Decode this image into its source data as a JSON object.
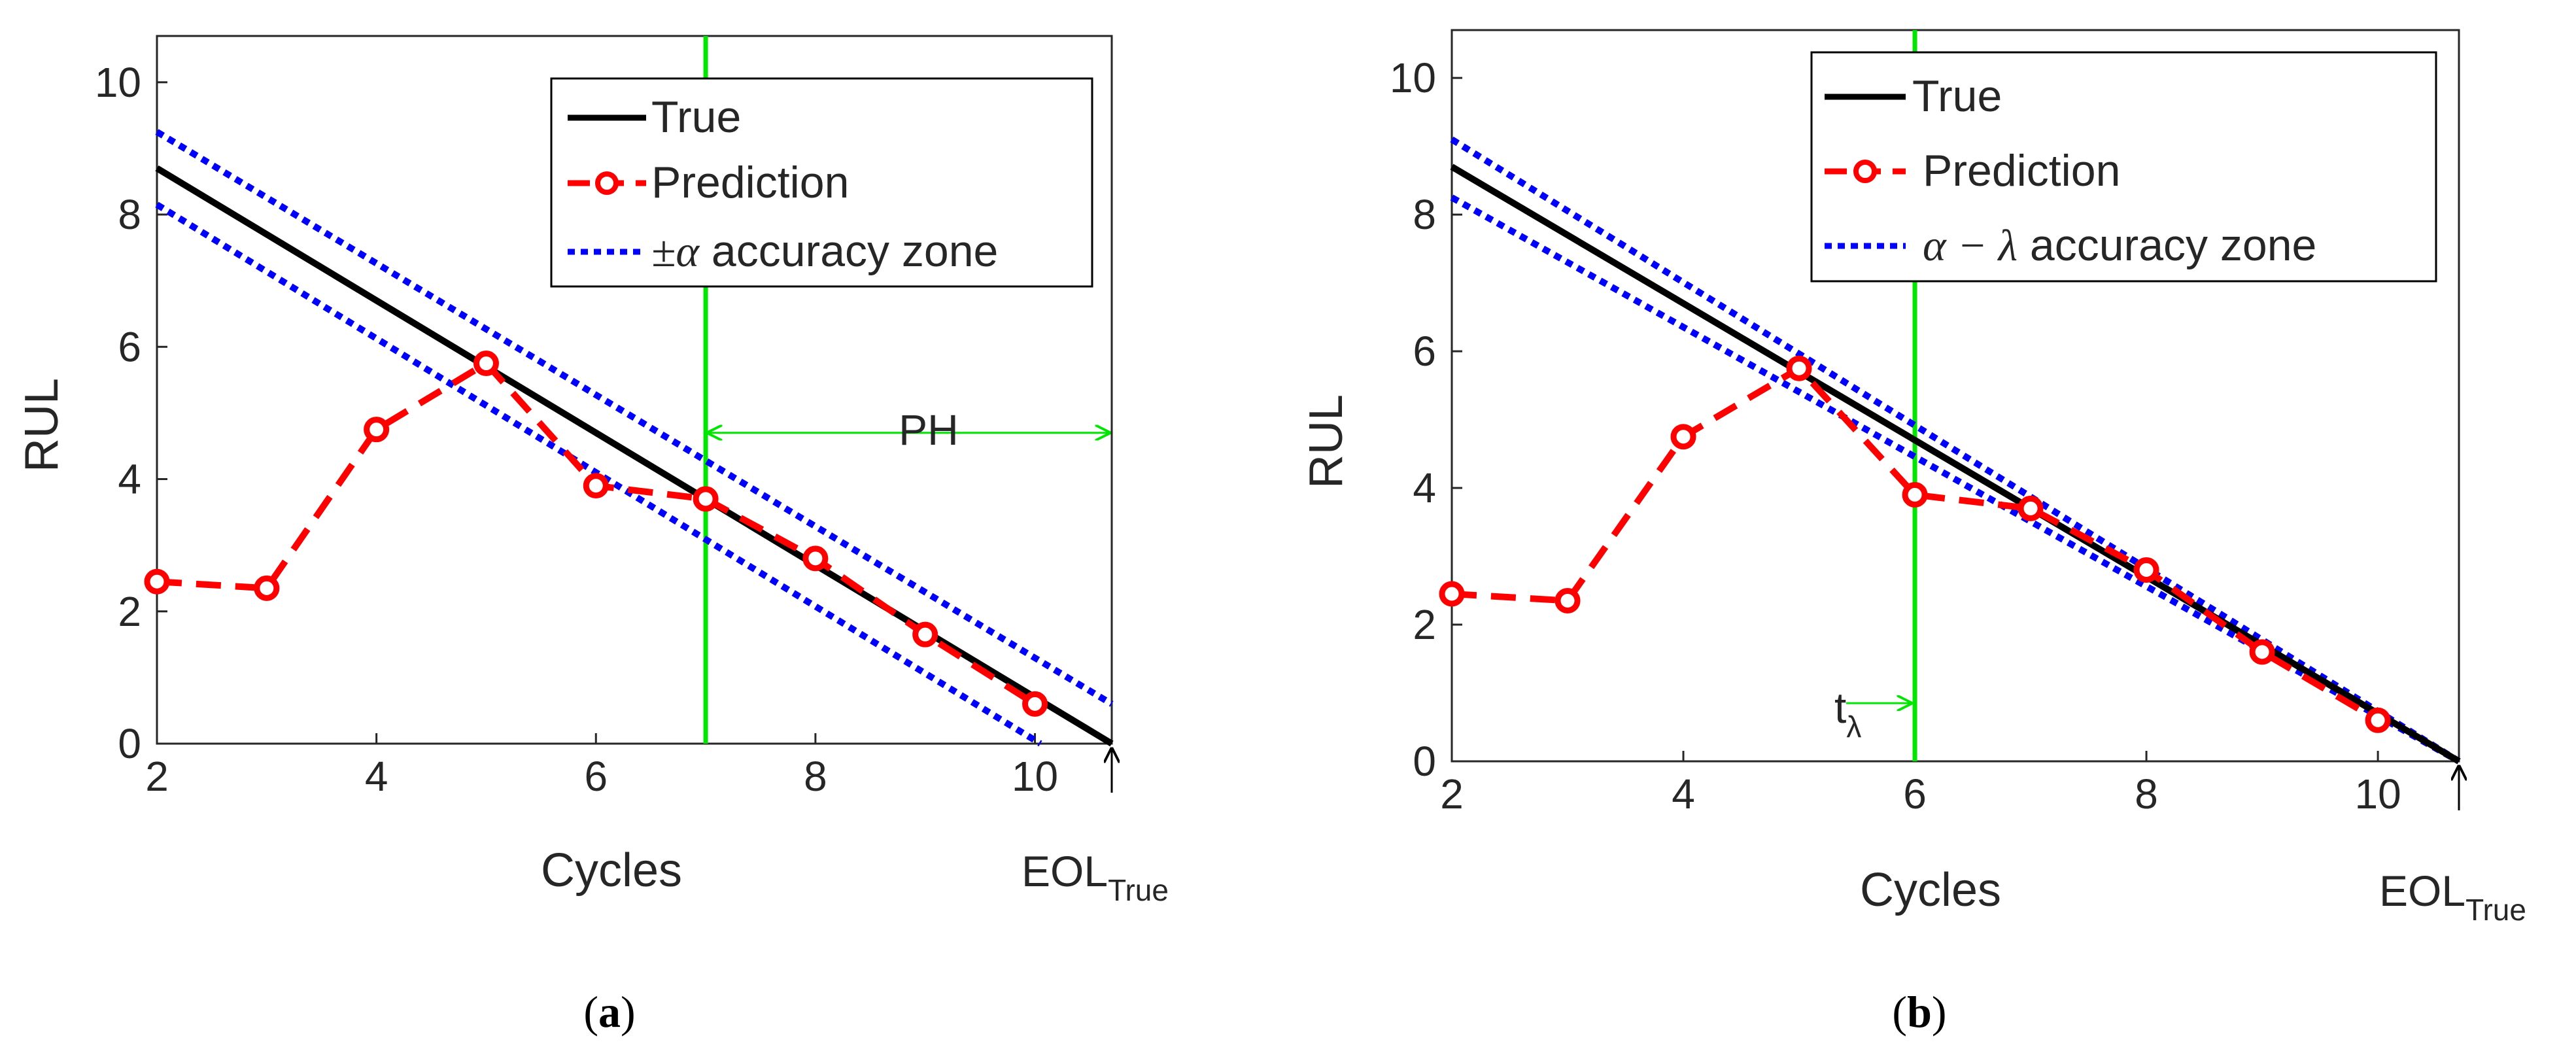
{
  "chart_data": [
    {
      "type": "line",
      "panel_label": "a",
      "xlabel": "Cycles",
      "ylabel": "RUL",
      "xlim": [
        2,
        10.7
      ],
      "ylim": [
        0,
        10.7
      ],
      "xticks": [
        2,
        4,
        6,
        8,
        10
      ],
      "yticks": [
        0,
        2,
        4,
        6,
        8,
        10
      ],
      "series": [
        {
          "name": "True",
          "x": [
            2,
            10.7
          ],
          "y": [
            8.7,
            0
          ],
          "color": "#000000"
        },
        {
          "name": "Prediction",
          "x": [
            2,
            3,
            4,
            5,
            6,
            7,
            8,
            9,
            10
          ],
          "y": [
            2.45,
            2.35,
            4.75,
            5.75,
            3.9,
            3.7,
            2.8,
            1.65,
            0.6
          ],
          "color": "#ff0000"
        },
        {
          "name": "±α accuracy zone",
          "upper": {
            "x": [
              2,
              10.7
            ],
            "y": [
              9.25,
              0.6
            ]
          },
          "lower": {
            "x": [
              2,
              10.05
            ],
            "y": [
              8.15,
              0
            ]
          },
          "color": "#0000ff"
        }
      ],
      "legend": [
        "True",
        "Prediction",
        "±α accuracy zone"
      ],
      "legend_position": "top-right",
      "vline": {
        "x": 7,
        "color": "#00e600"
      },
      "ph_arrow": {
        "x_start": 7,
        "x_end": 10.7,
        "y": 4.7,
        "label": "PH"
      },
      "eol": {
        "x": 10.7,
        "label": "EOL",
        "subscript": "True"
      }
    },
    {
      "type": "line",
      "panel_label": "b",
      "xlabel": "Cycles",
      "ylabel": "RUL",
      "xlim": [
        2,
        10.7
      ],
      "ylim": [
        0,
        10.7
      ],
      "xticks": [
        2,
        4,
        6,
        8,
        10
      ],
      "yticks": [
        0,
        2,
        4,
        6,
        8,
        10
      ],
      "series": [
        {
          "name": "True",
          "x": [
            2,
            10.7
          ],
          "y": [
            8.7,
            0
          ],
          "color": "#000000"
        },
        {
          "name": "Prediction",
          "x": [
            2,
            3,
            4,
            5,
            6,
            7,
            8,
            9,
            10
          ],
          "y": [
            2.45,
            2.35,
            4.75,
            5.75,
            3.9,
            3.7,
            2.8,
            1.6,
            0.6
          ],
          "color": "#ff0000"
        },
        {
          "name": "α − λ accuracy zone",
          "upper": {
            "x": [
              2,
              10.7
            ],
            "y": [
              9.1,
              0
            ]
          },
          "lower": {
            "x": [
              2,
              10.7
            ],
            "y": [
              8.25,
              0
            ]
          },
          "color": "#0000ff"
        }
      ],
      "legend": [
        "True",
        "Prediction",
        "α − λ accuracy zone"
      ],
      "legend_position": "top-right",
      "vline": {
        "x": 6,
        "color": "#00e600"
      },
      "t_lambda": {
        "label": "t",
        "subscript": "λ",
        "x": 6,
        "y": 0.85
      },
      "eol": {
        "x": 10.7,
        "label": "EOL",
        "subscript": "True"
      }
    }
  ],
  "captions": {
    "a": {
      "open": "(",
      "label": "a",
      "close": ")"
    },
    "b": {
      "open": "(",
      "label": "b",
      "close": ")"
    }
  },
  "text": {
    "a": {
      "ylabel": "RUL",
      "xlabel": "Cycles",
      "legend_true": "True",
      "legend_pred": "Prediction",
      "legend_zone_sym": "±α",
      "legend_zone_rest": " accuracy zone",
      "ph": "PH",
      "eol": "EOL",
      "eol_sub": "True"
    },
    "b": {
      "ylabel": "RUL",
      "xlabel": "Cycles",
      "legend_true": "True",
      "legend_pred": "Prediction",
      "legend_zone_sym": "α − λ",
      "legend_zone_rest": " accuracy zone",
      "t": "t",
      "t_sub": "λ",
      "eol": "EOL",
      "eol_sub": "True"
    }
  }
}
